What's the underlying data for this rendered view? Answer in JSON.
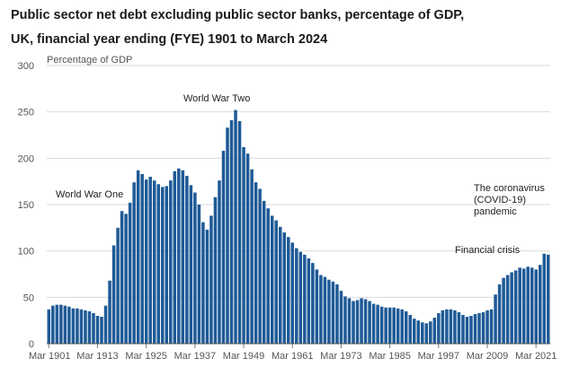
{
  "title_line1": "Public sector net debt excluding public sector banks, percentage of GDP,",
  "title_line2": "UK, financial year ending (FYE) 1901 to March 2024",
  "chart_data": {
    "type": "bar",
    "title": "Public sector net debt excluding public sector banks, percentage of GDP, UK, financial year ending (FYE) 1901 to March 2024",
    "ylabel": "Percentage of GDP",
    "ylim": [
      0,
      300
    ],
    "yticks": [
      0,
      50,
      100,
      150,
      200,
      250,
      300
    ],
    "xtick_labels": [
      "Mar 1901",
      "Mar 1913",
      "Mar 1925",
      "Mar 1937",
      "Mar 1949",
      "Mar 1961",
      "Mar 1973",
      "Mar 1985",
      "Mar 1997",
      "Mar 2009",
      "Mar 2021"
    ],
    "xtick_index": [
      0,
      12,
      24,
      36,
      48,
      60,
      72,
      84,
      96,
      108,
      120
    ],
    "grid": true,
    "bar_color": "#1f5a96",
    "categories": [
      "1901",
      "1902",
      "1903",
      "1904",
      "1905",
      "1906",
      "1907",
      "1908",
      "1909",
      "1910",
      "1911",
      "1912",
      "1913",
      "1914",
      "1915",
      "1916",
      "1917",
      "1918",
      "1919",
      "1920",
      "1921",
      "1922",
      "1923",
      "1924",
      "1925",
      "1926",
      "1927",
      "1928",
      "1929",
      "1930",
      "1931",
      "1932",
      "1933",
      "1934",
      "1935",
      "1936",
      "1937",
      "1938",
      "1939",
      "1940",
      "1941",
      "1942",
      "1943",
      "1944",
      "1945",
      "1946",
      "1947",
      "1948",
      "1949",
      "1950",
      "1951",
      "1952",
      "1953",
      "1954",
      "1955",
      "1956",
      "1957",
      "1958",
      "1959",
      "1960",
      "1961",
      "1962",
      "1963",
      "1964",
      "1965",
      "1966",
      "1967",
      "1968",
      "1969",
      "1970",
      "1971",
      "1972",
      "1973",
      "1974",
      "1975",
      "1976",
      "1977",
      "1978",
      "1979",
      "1980",
      "1981",
      "1982",
      "1983",
      "1984",
      "1985",
      "1986",
      "1987",
      "1988",
      "1989",
      "1990",
      "1991",
      "1992",
      "1993",
      "1994",
      "1995",
      "1996",
      "1997",
      "1998",
      "1999",
      "2000",
      "2001",
      "2002",
      "2003",
      "2004",
      "2005",
      "2006",
      "2007",
      "2008",
      "2009",
      "2010",
      "2011",
      "2012",
      "2013",
      "2014",
      "2015",
      "2016",
      "2017",
      "2018",
      "2019",
      "2020",
      "2021",
      "2022",
      "2023",
      "2024"
    ],
    "values": [
      37,
      41,
      42,
      42,
      41,
      40,
      38,
      38,
      37,
      36,
      35,
      33,
      30,
      29,
      41,
      68,
      106,
      125,
      143,
      140,
      152,
      174,
      187,
      183,
      177,
      180,
      176,
      172,
      169,
      170,
      176,
      186,
      189,
      187,
      181,
      171,
      163,
      150,
      131,
      123,
      138,
      158,
      176,
      208,
      233,
      241,
      252,
      240,
      212,
      205,
      188,
      174,
      167,
      154,
      146,
      138,
      133,
      126,
      120,
      115,
      109,
      103,
      99,
      96,
      92,
      87,
      80,
      74,
      72,
      69,
      67,
      64,
      57,
      51,
      49,
      46,
      47,
      49,
      48,
      46,
      43,
      42,
      40,
      39,
      39,
      39,
      38,
      37,
      35,
      31,
      27,
      25,
      23,
      22,
      24,
      28,
      33,
      36,
      37,
      37,
      36,
      34,
      31,
      29,
      30,
      32,
      33,
      34,
      36,
      37,
      53,
      64,
      71,
      74,
      77,
      79,
      82,
      81,
      83,
      82,
      80,
      85,
      97,
      96
    ],
    "annotations": [
      {
        "text": "World War One"
      },
      {
        "text": "World War Two"
      },
      {
        "lines": [
          "The coronavirus",
          "(COVID-19)",
          "pandemic"
        ]
      },
      {
        "text": "Financial crisis"
      }
    ]
  }
}
